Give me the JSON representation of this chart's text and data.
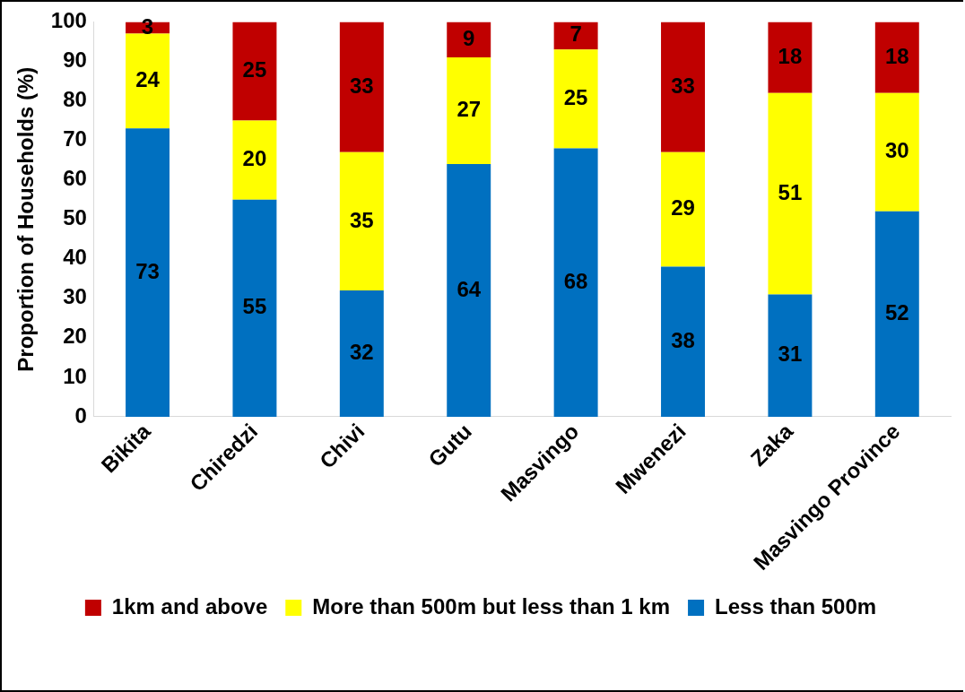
{
  "chart_data": {
    "type": "bar",
    "stacked": true,
    "ylabel": "Proportion of Households (%)",
    "categories": [
      "Bikita",
      "Chiredzi",
      "Chivi",
      "Gutu",
      "Masvingo",
      "Mwenezi",
      "Zaka",
      "Masvingo Province"
    ],
    "series": [
      {
        "name": "Less than 500m",
        "color": "#0070c0",
        "values": [
          73,
          55,
          32,
          64,
          68,
          38,
          31,
          52
        ]
      },
      {
        "name": "More than 500m but less than 1 km",
        "color": "#ffff00",
        "values": [
          24,
          20,
          35,
          27,
          25,
          29,
          51,
          30
        ]
      },
      {
        "name": "1km and above",
        "color": "#c00000",
        "values": [
          3,
          25,
          33,
          9,
          7,
          33,
          18,
          18
        ]
      }
    ],
    "ylim": [
      0,
      100
    ],
    "yticks": [
      0,
      10,
      20,
      30,
      40,
      50,
      60,
      70,
      80,
      90,
      100
    ],
    "grid": false,
    "legend": "bottom",
    "data_labels": true
  }
}
